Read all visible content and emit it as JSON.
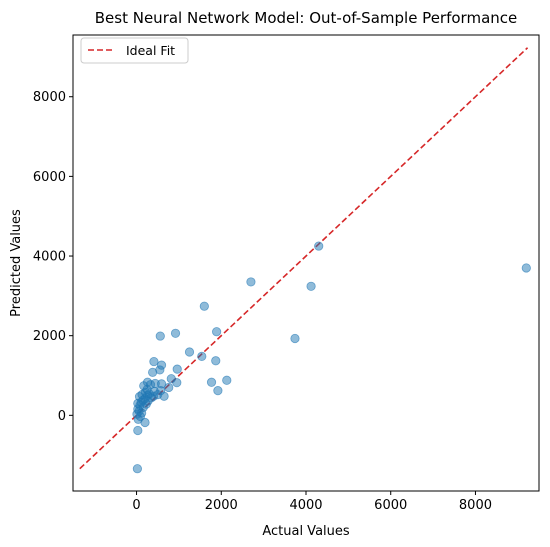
{
  "chart_data": {
    "type": "scatter",
    "title": "Best Neural Network Model: Out-of-Sample Performance",
    "xlabel": "Actual Values",
    "ylabel": "Predicted Values",
    "xlim": [
      -1500,
      9500
    ],
    "ylim": [
      -1900,
      9550
    ],
    "xticks": [
      0,
      2000,
      4000,
      6000,
      8000
    ],
    "yticks": [
      0,
      2000,
      4000,
      6000,
      8000
    ],
    "legend": {
      "position": "upper-left",
      "entries": [
        {
          "label": "Ideal Fit",
          "color": "#d62728",
          "style": "dashed"
        }
      ]
    },
    "grid": false,
    "point_color": "#1f77b4",
    "line_color": "#d62728",
    "ideal_fit": {
      "x": [
        -1340,
        9230
      ],
      "y": [
        -1340,
        9230
      ]
    },
    "points": [
      {
        "x": 20,
        "y": -1340
      },
      {
        "x": 30,
        "y": -380
      },
      {
        "x": 200,
        "y": -180
      },
      {
        "x": 40,
        "y": -100
      },
      {
        "x": 90,
        "y": -30
      },
      {
        "x": 10,
        "y": 30
      },
      {
        "x": 120,
        "y": 60
      },
      {
        "x": 60,
        "y": 110
      },
      {
        "x": 30,
        "y": 160
      },
      {
        "x": 160,
        "y": 200
      },
      {
        "x": 80,
        "y": 250
      },
      {
        "x": 230,
        "y": 280
      },
      {
        "x": 30,
        "y": 300
      },
      {
        "x": 110,
        "y": 330
      },
      {
        "x": 270,
        "y": 360
      },
      {
        "x": 150,
        "y": 380
      },
      {
        "x": 200,
        "y": 420
      },
      {
        "x": 350,
        "y": 440
      },
      {
        "x": 70,
        "y": 470
      },
      {
        "x": 400,
        "y": 480
      },
      {
        "x": 260,
        "y": 500
      },
      {
        "x": 130,
        "y": 520
      },
      {
        "x": 500,
        "y": 520
      },
      {
        "x": 300,
        "y": 540
      },
      {
        "x": 650,
        "y": 480
      },
      {
        "x": 210,
        "y": 580
      },
      {
        "x": 420,
        "y": 600
      },
      {
        "x": 570,
        "y": 620
      },
      {
        "x": 250,
        "y": 650
      },
      {
        "x": 760,
        "y": 700
      },
      {
        "x": 170,
        "y": 740
      },
      {
        "x": 330,
        "y": 770
      },
      {
        "x": 590,
        "y": 790
      },
      {
        "x": 440,
        "y": 800
      },
      {
        "x": 950,
        "y": 820
      },
      {
        "x": 260,
        "y": 830
      },
      {
        "x": 820,
        "y": 920
      },
      {
        "x": 380,
        "y": 1080
      },
      {
        "x": 960,
        "y": 1160
      },
      {
        "x": 550,
        "y": 1140
      },
      {
        "x": 590,
        "y": 1260
      },
      {
        "x": 410,
        "y": 1350
      },
      {
        "x": 1250,
        "y": 1590
      },
      {
        "x": 1540,
        "y": 1480
      },
      {
        "x": 560,
        "y": 1990
      },
      {
        "x": 920,
        "y": 2060
      },
      {
        "x": 1890,
        "y": 2100
      },
      {
        "x": 1870,
        "y": 1370
      },
      {
        "x": 1770,
        "y": 830
      },
      {
        "x": 2130,
        "y": 880
      },
      {
        "x": 1920,
        "y": 620
      },
      {
        "x": 1600,
        "y": 2740
      },
      {
        "x": 2700,
        "y": 3350
      },
      {
        "x": 3740,
        "y": 1930
      },
      {
        "x": 4120,
        "y": 3240
      },
      {
        "x": 4300,
        "y": 4250
      },
      {
        "x": 9200,
        "y": 3700
      }
    ]
  }
}
